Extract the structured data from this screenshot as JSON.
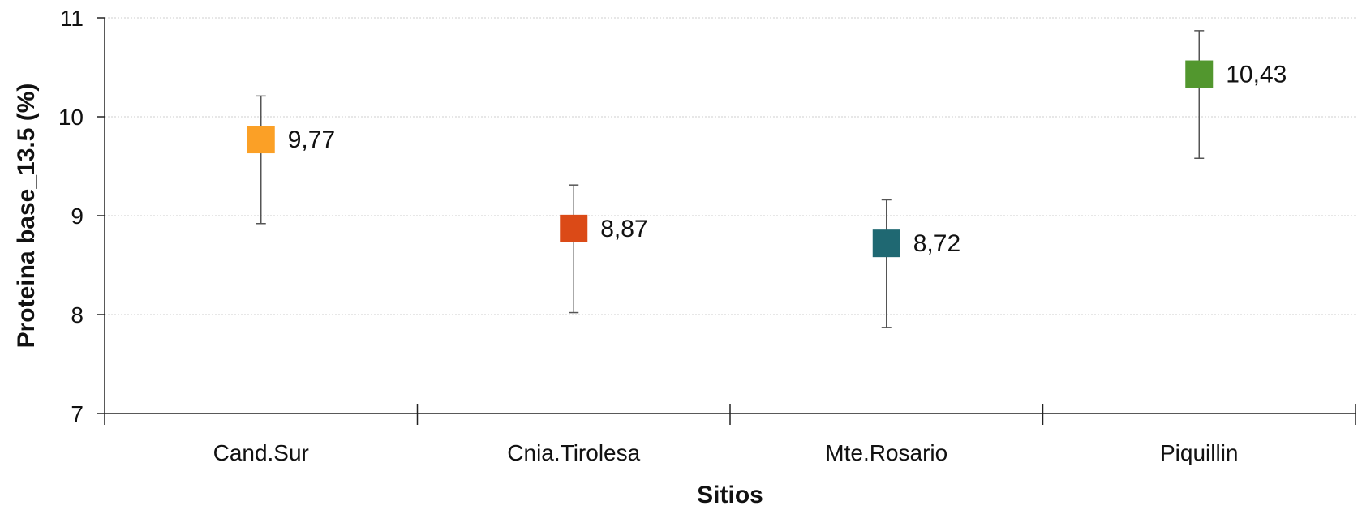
{
  "chart_data": {
    "type": "scatter",
    "xlabel": "Sitios",
    "ylabel": "Proteina base_13.5 (%)",
    "ylim": [
      7,
      11
    ],
    "yticks": [
      7,
      8,
      9,
      10,
      11
    ],
    "ytick_labels": [
      "7",
      "8",
      "9",
      "10",
      "11"
    ],
    "grid": true,
    "categories": [
      "Cand.Sur",
      "Cnia.Tirolesa",
      "Mte.Rosario",
      "Piquillin"
    ],
    "points": [
      {
        "category": "Cand.Sur",
        "value": 9.77,
        "label": "9,77",
        "err_low": 8.92,
        "err_high": 10.21,
        "color": "#FBA026"
      },
      {
        "category": "Cnia.Tirolesa",
        "value": 8.87,
        "label": "8,87",
        "err_low": 8.02,
        "err_high": 9.31,
        "color": "#DB4A17"
      },
      {
        "category": "Mte.Rosario",
        "value": 8.72,
        "label": "8,72",
        "err_low": 7.87,
        "err_high": 9.16,
        "color": "#1F6872"
      },
      {
        "category": "Piquillin",
        "value": 10.43,
        "label": "10,43",
        "err_low": 9.58,
        "err_high": 10.87,
        "color": "#52972E"
      }
    ]
  }
}
